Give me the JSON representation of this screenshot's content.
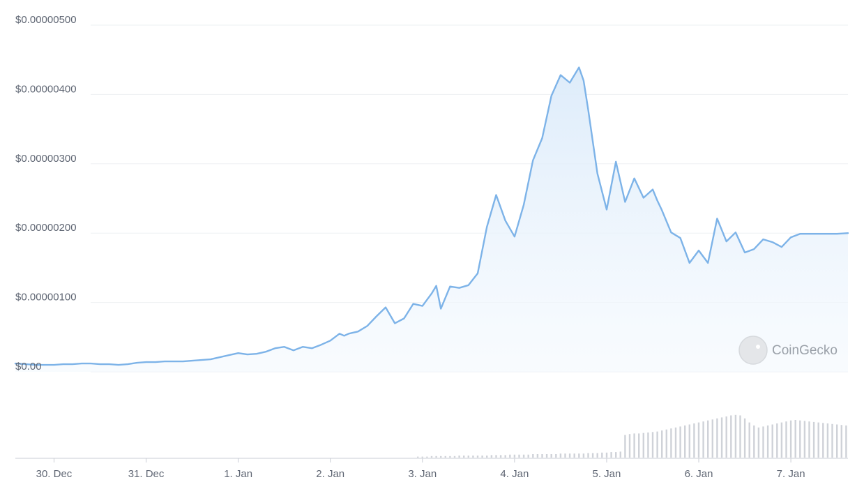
{
  "chart_data": {
    "type": "area",
    "title": "",
    "xlabel": "",
    "ylabel": "",
    "y_ticks": [
      "$0.00",
      "$0.00000100",
      "$0.00000200",
      "$0.00000300",
      "$0.00000400",
      "$0.00000500"
    ],
    "y_tick_values": [
      0,
      1e-06,
      2e-06,
      3e-06,
      4e-06,
      5e-06
    ],
    "ylim": [
      0,
      5e-06
    ],
    "x_ticks": [
      "30. Dec",
      "31. Dec",
      "1. Jan",
      "2. Jan",
      "3. Jan",
      "4. Jan",
      "5. Jan",
      "6. Jan",
      "7. Jan"
    ],
    "x_tick_positions": [
      0,
      1,
      2,
      3,
      4,
      5,
      6,
      7,
      8
    ],
    "xlim": [
      -0.42,
      8.62
    ],
    "grid": true,
    "line_color": "#7db3e8",
    "fill_color": "#eaf3fc",
    "volume_color": "#cfd2d8",
    "watermark": "CoinGecko",
    "price": {
      "x": [
        -0.42,
        -0.3,
        -0.2,
        -0.1,
        0.0,
        0.1,
        0.2,
        0.3,
        0.4,
        0.5,
        0.6,
        0.7,
        0.8,
        0.9,
        1.0,
        1.1,
        1.2,
        1.3,
        1.4,
        1.5,
        1.6,
        1.7,
        1.8,
        1.9,
        2.0,
        2.1,
        2.2,
        2.3,
        2.4,
        2.5,
        2.6,
        2.7,
        2.8,
        2.9,
        3.0,
        3.1,
        3.15,
        3.2,
        3.3,
        3.4,
        3.5,
        3.6,
        3.7,
        3.8,
        3.9,
        4.0,
        4.1,
        4.15,
        4.2,
        4.3,
        4.4,
        4.5,
        4.6,
        4.7,
        4.8,
        4.9,
        5.0,
        5.1,
        5.2,
        5.3,
        5.4,
        5.5,
        5.6,
        5.7,
        5.75,
        5.8,
        5.9,
        6.0,
        6.1,
        6.2,
        6.3,
        6.4,
        6.5,
        6.55,
        6.6,
        6.7,
        6.8,
        6.9,
        7.0,
        7.1,
        7.2,
        7.3,
        7.4,
        7.5,
        7.6,
        7.7,
        7.8,
        7.9,
        8.0,
        8.1,
        8.2,
        8.3,
        8.4,
        8.5,
        8.62
      ],
      "y": [
        1.2e-07,
        1.1e-07,
        1e-07,
        1e-07,
        1e-07,
        1.1e-07,
        1.1e-07,
        1.2e-07,
        1.2e-07,
        1.1e-07,
        1.1e-07,
        1e-07,
        1.1e-07,
        1.3e-07,
        1.4e-07,
        1.4e-07,
        1.5e-07,
        1.5e-07,
        1.5e-07,
        1.6e-07,
        1.7e-07,
        1.8e-07,
        2.1e-07,
        2.4e-07,
        2.7e-07,
        2.5e-07,
        2.6e-07,
        2.9e-07,
        3.4e-07,
        3.6e-07,
        3.1e-07,
        3.6e-07,
        3.4e-07,
        3.9e-07,
        4.5e-07,
        5.5e-07,
        5.2e-07,
        5.5e-07,
        5.8e-07,
        6.6e-07,
        8e-07,
        9.3e-07,
        7e-07,
        7.7e-07,
        9.8e-07,
        9.5e-07,
        1.13e-06,
        1.24e-06,
        9.1e-07,
        1.23e-06,
        1.21e-06,
        1.25e-06,
        1.42e-06,
        2.09e-06,
        2.55e-06,
        2.18e-06,
        1.95e-06,
        2.41e-06,
        3.05e-06,
        3.37e-06,
        3.98e-06,
        4.28e-06,
        4.17e-06,
        4.39e-06,
        4.2e-06,
        3.78e-06,
        2.86e-06,
        2.34e-06,
        3.03e-06,
        2.45e-06,
        2.79e-06,
        2.51e-06,
        2.63e-06,
        2.47e-06,
        2.33e-06,
        2.01e-06,
        1.93e-06,
        1.57e-06,
        1.75e-06,
        1.57e-06,
        2.21e-06,
        1.88e-06,
        2.01e-06,
        1.72e-06,
        1.77e-06,
        1.91e-06,
        1.87e-06,
        1.8e-06,
        1.94e-06,
        1.99e-06,
        1.99e-06,
        1.99e-06,
        1.99e-06,
        1.99e-06,
        2e-06
      ]
    },
    "volume": {
      "x_start": 3.95,
      "x_step": 0.05,
      "values": [
        0.02,
        0.02,
        0.02,
        0.03,
        0.03,
        0.03,
        0.03,
        0.03,
        0.03,
        0.04,
        0.04,
        0.04,
        0.04,
        0.04,
        0.04,
        0.04,
        0.05,
        0.05,
        0.05,
        0.05,
        0.06,
        0.06,
        0.06,
        0.06,
        0.06,
        0.07,
        0.07,
        0.07,
        0.07,
        0.07,
        0.07,
        0.08,
        0.08,
        0.08,
        0.08,
        0.08,
        0.08,
        0.09,
        0.09,
        0.09,
        0.1,
        0.1,
        0.11,
        0.11,
        0.12,
        0.45,
        0.47,
        0.48,
        0.48,
        0.49,
        0.5,
        0.51,
        0.52,
        0.54,
        0.56,
        0.58,
        0.6,
        0.62,
        0.64,
        0.66,
        0.68,
        0.7,
        0.72,
        0.74,
        0.76,
        0.78,
        0.8,
        0.82,
        0.84,
        0.85,
        0.84,
        0.78,
        0.7,
        0.64,
        0.6,
        0.62,
        0.64,
        0.66,
        0.68,
        0.7,
        0.72,
        0.74,
        0.75,
        0.74,
        0.73,
        0.72,
        0.71,
        0.7,
        0.69,
        0.68,
        0.67,
        0.66,
        0.65,
        0.64,
        0.63,
        0.62,
        0.61,
        0.6,
        0.59,
        0.58,
        0.57,
        0.56,
        0.55,
        0.54,
        0.53,
        0.52,
        0.51,
        0.5,
        0.5,
        0.49,
        0.49,
        0.48,
        0.48,
        0.48,
        0.47,
        0.47,
        0.46,
        0.46,
        0.45,
        0.44,
        0.43
      ]
    }
  }
}
